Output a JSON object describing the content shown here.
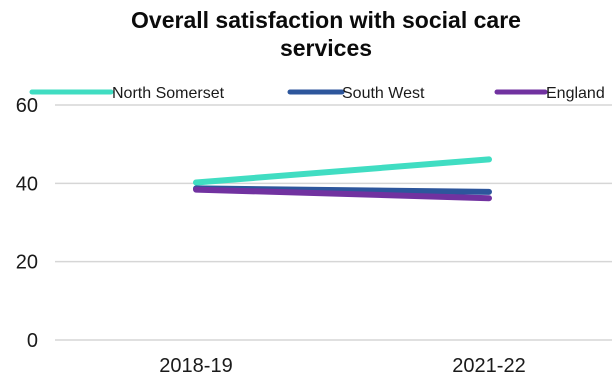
{
  "chart_data": {
    "type": "line",
    "title_lines": [
      "Overall satisfaction with social care",
      "services"
    ],
    "xlabel": "",
    "ylabel": "",
    "categories": [
      "2018-19",
      "2021-22"
    ],
    "ylim": [
      0,
      60
    ],
    "yticks": [
      0,
      20,
      40,
      60
    ],
    "grid": true,
    "legend_position": "top",
    "series": [
      {
        "name": "North Somerset",
        "values": [
          40.2,
          46.1
        ],
        "color": "#40DDC2"
      },
      {
        "name": "South West",
        "values": [
          38.7,
          37.8
        ],
        "color": "#2D569C"
      },
      {
        "name": "England",
        "values": [
          38.4,
          36.2
        ],
        "color": "#7132A0"
      }
    ]
  }
}
